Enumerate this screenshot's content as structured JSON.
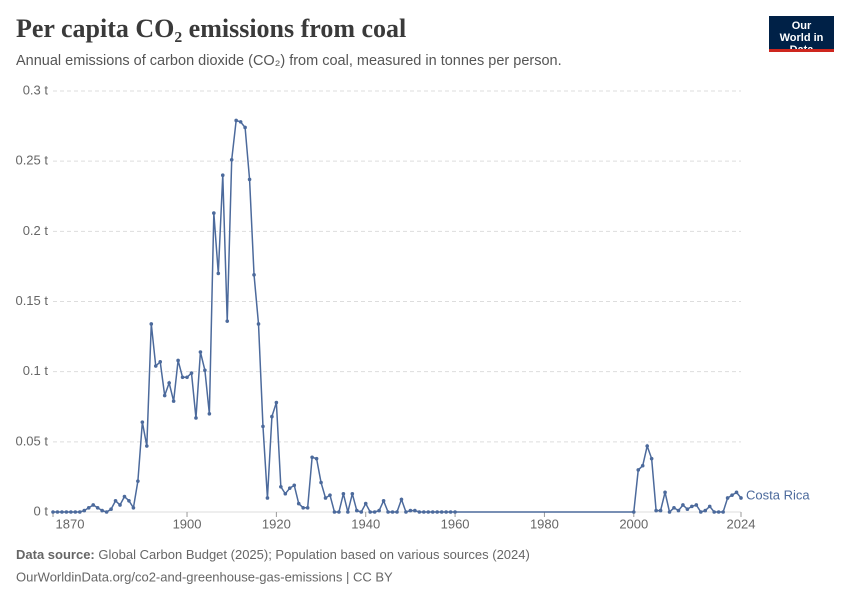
{
  "chart_data": {
    "type": "line",
    "title": "Per capita CO₂ emissions from coal",
    "subtitle": "Annual emissions of carbon dioxide (CO₂) from coal, measured in tonnes per person.",
    "logo": "Our World in Data",
    "source_label": "Data source:",
    "source": "Global Carbon Budget (2025); Population based on various sources (2024)",
    "footer": "OurWorldinData.org/co2-and-greenhouse-gas-emissions | CC BY",
    "x": [
      1870,
      1871,
      1872,
      1873,
      1874,
      1875,
      1876,
      1877,
      1878,
      1879,
      1880,
      1881,
      1882,
      1883,
      1884,
      1885,
      1886,
      1887,
      1888,
      1889,
      1890,
      1891,
      1892,
      1893,
      1894,
      1895,
      1896,
      1897,
      1898,
      1899,
      1900,
      1901,
      1902,
      1903,
      1904,
      1905,
      1906,
      1907,
      1908,
      1909,
      1910,
      1911,
      1912,
      1913,
      1914,
      1915,
      1916,
      1917,
      1918,
      1919,
      1920,
      1921,
      1922,
      1923,
      1924,
      1925,
      1926,
      1927,
      1928,
      1929,
      1930,
      1931,
      1932,
      1933,
      1934,
      1935,
      1936,
      1937,
      1938,
      1939,
      1940,
      1941,
      1942,
      1943,
      1944,
      1945,
      1946,
      1947,
      1948,
      1949,
      1950,
      1951,
      1952,
      1953,
      1954,
      1955,
      1956,
      1957,
      1958,
      1959,
      1960,
      2000,
      2001,
      2002,
      2003,
      2004,
      2005,
      2006,
      2007,
      2008,
      2009,
      2010,
      2011,
      2012,
      2013,
      2014,
      2015,
      2016,
      2017,
      2018,
      2019,
      2020,
      2021,
      2022,
      2023,
      2024
    ],
    "series": [
      {
        "name": "Costa Rica",
        "color": "#4c6a9c",
        "values": [
          0,
          0,
          0,
          0,
          0,
          0,
          0,
          0.001,
          0.003,
          0.005,
          0.003,
          0.001,
          0,
          0.002,
          0.008,
          0.005,
          0.011,
          0.008,
          0.003,
          0.022,
          0.064,
          0.047,
          0.134,
          0.104,
          0.107,
          0.083,
          0.092,
          0.079,
          0.108,
          0.096,
          0.096,
          0.099,
          0.067,
          0.114,
          0.101,
          0.07,
          0.213,
          0.17,
          0.24,
          0.136,
          0.251,
          0.279,
          0.278,
          0.274,
          0.237,
          0.169,
          0.134,
          0.061,
          0.01,
          0.068,
          0.078,
          0.018,
          0.013,
          0.017,
          0.019,
          0.006,
          0.003,
          0.003,
          0.039,
          0.038,
          0.021,
          0.01,
          0.012,
          0,
          0,
          0.013,
          0,
          0.013,
          0.001,
          0,
          0.006,
          0,
          0,
          0.001,
          0.008,
          0,
          0,
          0,
          0.009,
          0,
          0.001,
          0.001,
          0,
          0,
          0,
          0,
          0,
          0,
          0,
          0,
          0,
          0,
          0.03,
          0.033,
          0.047,
          0.038,
          0.001,
          0.001,
          0.014,
          0,
          0.003,
          0.001,
          0.005,
          0.002,
          0.004,
          0.005,
          0,
          0.001,
          0.004,
          0,
          0,
          0,
          0.01,
          0.012,
          0.014,
          0.01
        ]
      }
    ],
    "xlim": [
      1870,
      2024
    ],
    "xticks": [
      1870,
      1900,
      1920,
      1940,
      1960,
      1980,
      2000,
      2024
    ],
    "ylim": [
      0,
      0.3
    ],
    "yticks": [
      {
        "value": 0,
        "label": "0 t"
      },
      {
        "value": 0.05,
        "label": "0.05 t"
      },
      {
        "value": 0.1,
        "label": "0.1 t"
      },
      {
        "value": 0.15,
        "label": "0.15 t"
      },
      {
        "value": 0.2,
        "label": "0.2 t"
      },
      {
        "value": 0.25,
        "label": "0.25 t"
      },
      {
        "value": 0.3,
        "label": "0.3 t"
      }
    ],
    "grid": true
  }
}
